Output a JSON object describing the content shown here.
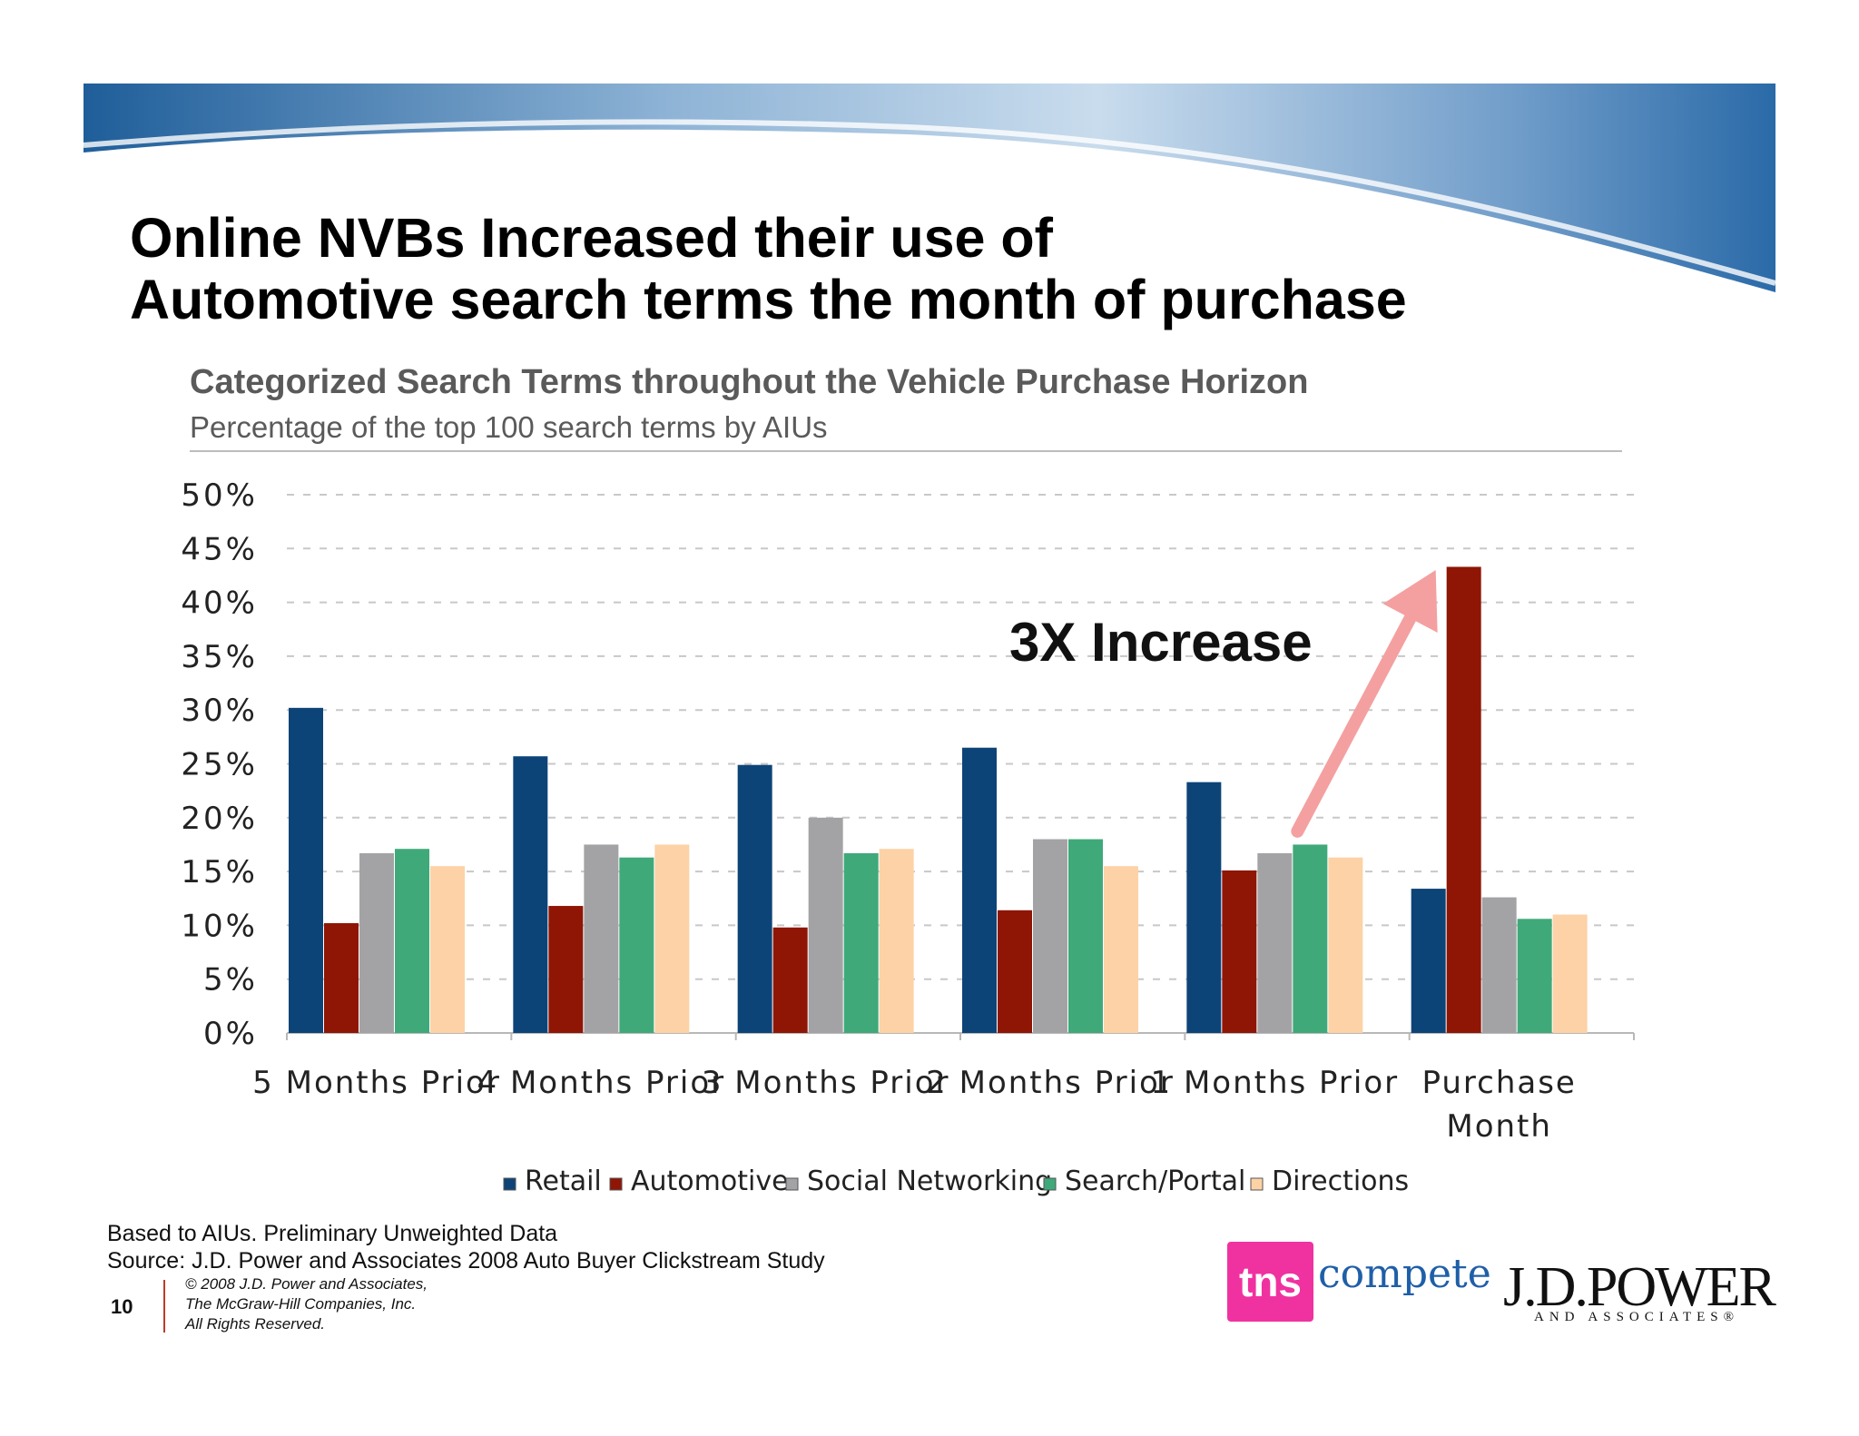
{
  "slide": {
    "title_line1": "Online NVBs Increased their use of",
    "title_line2": "Automotive search terms the month of purchase",
    "subtitle": "Categorized Search Terms throughout the Vehicle Purchase Horizon",
    "subsubtitle": "Percentage of the top 100 search terms by AIUs",
    "note_line1": "Based to AIUs. Preliminary Unweighted Data",
    "note_line2": "Source: J.D. Power and Associates 2008 Auto Buyer Clickstream Study",
    "page_number": "10",
    "copyright_line1": "© 2008 J.D. Power and Associates,",
    "copyright_line2": "The McGraw-Hill Companies, Inc.",
    "copyright_line3": "All Rights Reserved.",
    "logo_tns": "tns",
    "logo_compete": "compete",
    "logo_jdpower": "J.D.POWER",
    "logo_jdpower_sub": "AND ASSOCIATES®"
  },
  "chart_data": {
    "type": "bar",
    "title": "Categorized Search Terms throughout the Vehicle Purchase Horizon",
    "subtitle": "Percentage of the top 100 search terms by AIUs",
    "xlabel": "",
    "ylabel": "",
    "ylim": [
      0,
      50
    ],
    "yticks": [
      0,
      5,
      10,
      15,
      20,
      25,
      30,
      35,
      40,
      45,
      50
    ],
    "ytick_labels": [
      "0%",
      "5%",
      "10%",
      "15%",
      "20%",
      "25%",
      "30%",
      "35%",
      "40%",
      "45%",
      "50%"
    ],
    "grid": true,
    "legend_position": "bottom",
    "categories": [
      "5 Months Prior",
      "4 Months Prior",
      "3 Months Prior",
      "2 Months Prior",
      "1 Months Prior",
      "Purchase Month"
    ],
    "category_label_lines": [
      [
        "5   Months   Prior"
      ],
      [
        "4   Months   Prior"
      ],
      [
        "3   Months   Prior"
      ],
      [
        "2   Months   Prior"
      ],
      [
        "1   Months   Prior"
      ],
      [
        "Purchase",
        "Month"
      ]
    ],
    "series": [
      {
        "name": "Retail",
        "color": "#0d4478",
        "values": [
          30.2,
          25.7,
          24.9,
          26.5,
          23.3,
          13.4
        ]
      },
      {
        "name": "Automotive",
        "color": "#8f1505",
        "values": [
          10.2,
          11.8,
          9.8,
          11.4,
          15.1,
          43.3
        ]
      },
      {
        "name": "Social Networking",
        "color": "#a3a3a5",
        "values": [
          16.7,
          17.5,
          20.0,
          18.0,
          16.7,
          12.6
        ]
      },
      {
        "name": "Search/Portal",
        "color": "#3fa97a",
        "values": [
          17.1,
          16.3,
          16.7,
          18.0,
          17.5,
          10.6
        ]
      },
      {
        "name": "Directions",
        "color": "#fdd2a6",
        "values": [
          15.5,
          17.5,
          17.1,
          15.5,
          16.3,
          11.0
        ]
      }
    ],
    "annotations": [
      {
        "text": "3X Increase",
        "arrow_from": {
          "category": "1 Months Prior",
          "value": 20
        },
        "arrow_to": {
          "category": "Purchase Month",
          "value": 43
        },
        "arrow_color": "#f4a0a0"
      }
    ]
  }
}
